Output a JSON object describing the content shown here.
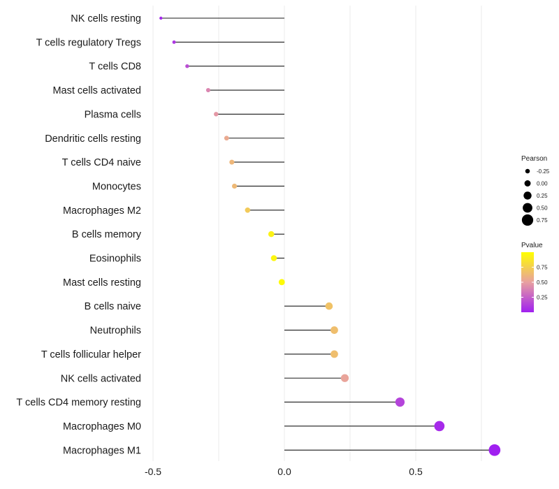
{
  "chart_data": {
    "type": "lollipop",
    "title": "",
    "xlabel": "",
    "ylabel": "",
    "xlim": [
      -0.5,
      0.8
    ],
    "xticks": [
      -0.5,
      0.0,
      0.5
    ],
    "xtick_labels": [
      "-0.5",
      "0.0",
      "0.5"
    ],
    "grid": true,
    "categories": [
      "NK cells resting",
      "T cells regulatory  Tregs",
      "T cells CD8",
      "Mast cells activated",
      "Plasma cells",
      "Dendritic cells resting",
      "T cells CD4 naive",
      "Monocytes",
      "Macrophages M2",
      "B cells memory",
      "Eosinophils",
      "Mast cells resting",
      "B cells naive",
      "Neutrophils",
      "T cells follicular helper",
      "NK cells activated",
      "T cells CD4 memory resting",
      "Macrophages M0",
      "Macrophages M1"
    ],
    "pearson": [
      -0.47,
      -0.42,
      -0.37,
      -0.29,
      -0.26,
      -0.22,
      -0.2,
      -0.19,
      -0.14,
      -0.05,
      -0.04,
      -0.01,
      0.17,
      0.19,
      0.19,
      0.23,
      0.44,
      0.59,
      0.8
    ],
    "pvalue": [
      0.03,
      0.09,
      0.18,
      0.4,
      0.47,
      0.55,
      0.62,
      0.63,
      0.72,
      0.93,
      0.95,
      0.98,
      0.68,
      0.66,
      0.66,
      0.52,
      0.14,
      0.04,
      0.001
    ],
    "legend": {
      "size": {
        "title": "Pearson",
        "breaks": [
          -0.25,
          0.0,
          0.25,
          0.5,
          0.75
        ],
        "labels": [
          "-0.25",
          "0.00",
          "0.25",
          "0.50",
          "0.75"
        ]
      },
      "color": {
        "title": "Pvalue",
        "breaks": [
          0.25,
          0.5,
          0.75
        ],
        "labels": [
          "0.25",
          "0.50",
          "0.75"
        ],
        "low_color": "#a020f0",
        "mid_color": "#e8a0a0",
        "high_color": "#ffff00",
        "range": [
          0,
          1
        ]
      }
    },
    "colors": {
      "segment": "#1a1a1a",
      "grid": "#ebebeb",
      "legend_key": "#000000"
    }
  }
}
